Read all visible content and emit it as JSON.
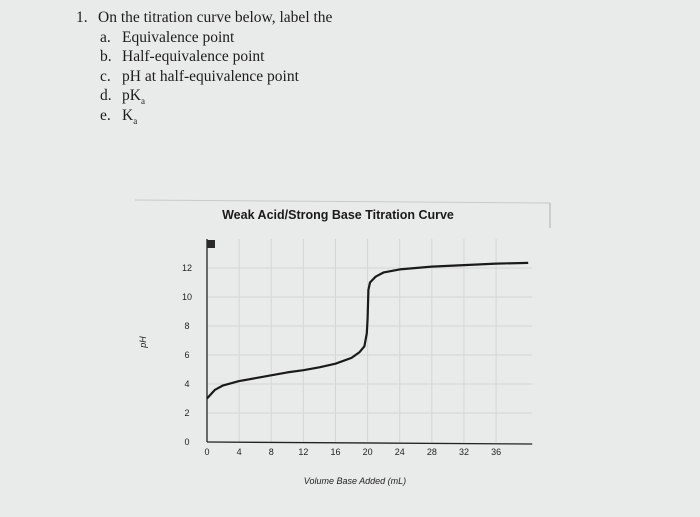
{
  "question": {
    "number": "1.",
    "stem": "On the titration curve below, label the",
    "items": [
      {
        "letter": "a.",
        "text": "Equivalence point"
      },
      {
        "letter": "b.",
        "text": "Half-equivalence point"
      },
      {
        "letter": "c.",
        "text": "pH at half-equivalence point"
      },
      {
        "letter": "d.",
        "text": "pK",
        "sub": "a"
      },
      {
        "letter": "e.",
        "text": "K",
        "sub": "a"
      }
    ]
  },
  "chart_data": {
    "type": "line",
    "title": "Weak Acid/Strong Base Titration Curve",
    "xlabel": "Volume Base Added (mL)",
    "ylabel": "pH",
    "xlim": [
      0,
      40
    ],
    "ylim": [
      0,
      14
    ],
    "xticks": [
      0,
      4,
      8,
      12,
      16,
      20,
      24,
      28,
      32,
      36
    ],
    "yticks": [
      0,
      2,
      4,
      6,
      8,
      10,
      12
    ],
    "grid": true,
    "line_color": "#1a1a1a",
    "series": [
      {
        "x": [
          0,
          0.5,
          1,
          2,
          4,
          6,
          8,
          10,
          12,
          14,
          16,
          18,
          19,
          19.6,
          19.9,
          20,
          20.1,
          20.3,
          21,
          22,
          24,
          28,
          32,
          36,
          40
        ],
        "y": [
          3.0,
          3.3,
          3.6,
          3.9,
          4.2,
          4.4,
          4.6,
          4.8,
          4.95,
          5.15,
          5.4,
          5.8,
          6.2,
          6.6,
          7.5,
          8.5,
          10.5,
          11.0,
          11.4,
          11.7,
          11.9,
          12.1,
          12.2,
          12.3,
          12.35
        ]
      }
    ]
  }
}
